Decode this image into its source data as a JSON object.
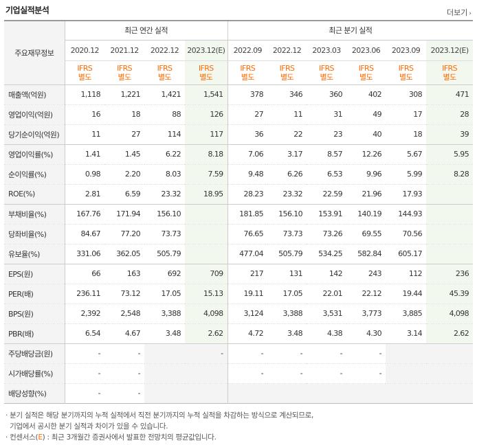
{
  "header": {
    "title": "기업실적분석",
    "more_label": "더보기"
  },
  "table": {
    "corner_label": "주요재무정보",
    "annual_label": "최근 연간 실적",
    "quarter_label": "최근 분기 실적",
    "periods": [
      "2020.12",
      "2021.12",
      "2022.12",
      "2023.12(E)",
      "2022.09",
      "2022.12",
      "2023.03",
      "2023.06",
      "2023.09",
      "2023.12(E)"
    ],
    "ifrs_line1": "IFRS",
    "ifrs_line2": "별도",
    "rows": [
      {
        "label": "매출액(억원)",
        "values": [
          "1,118",
          "1,221",
          "1,421",
          "1,541",
          "378",
          "346",
          "360",
          "402",
          "308",
          "471"
        ]
      },
      {
        "label": "영업이익(억원)",
        "values": [
          "16",
          "18",
          "88",
          "126",
          "27",
          "11",
          "31",
          "49",
          "17",
          "28"
        ]
      },
      {
        "label": "당기순이익(억원)",
        "values": [
          "11",
          "27",
          "114",
          "117",
          "36",
          "22",
          "23",
          "40",
          "18",
          "39"
        ]
      },
      {
        "label": "영업이익률(%)",
        "values": [
          "1.41",
          "1.45",
          "6.22",
          "8.18",
          "7.06",
          "3.17",
          "8.57",
          "12.26",
          "5.67",
          "5.95"
        ]
      },
      {
        "label": "순이익률(%)",
        "values": [
          "0.98",
          "2.20",
          "8.03",
          "7.59",
          "9.48",
          "6.26",
          "6.53",
          "9.96",
          "5.99",
          "8.28"
        ]
      },
      {
        "label": "ROE(%)",
        "values": [
          "2.81",
          "6.59",
          "23.32",
          "18.95",
          "28.23",
          "23.32",
          "22.59",
          "21.96",
          "17.93",
          ""
        ]
      },
      {
        "label": "부채비율(%)",
        "values": [
          "167.76",
          "171.94",
          "156.10",
          "",
          "181.85",
          "156.10",
          "153.91",
          "140.19",
          "144.93",
          ""
        ]
      },
      {
        "label": "당좌비율(%)",
        "values": [
          "84.67",
          "77.20",
          "73.73",
          "",
          "76.65",
          "73.73",
          "73.26",
          "69.55",
          "70.56",
          ""
        ]
      },
      {
        "label": "유보율(%)",
        "values": [
          "331.06",
          "362.05",
          "505.79",
          "",
          "477.04",
          "505.79",
          "534.25",
          "582.84",
          "605.17",
          ""
        ]
      },
      {
        "label": "EPS(원)",
        "values": [
          "66",
          "163",
          "692",
          "709",
          "217",
          "131",
          "142",
          "243",
          "112",
          "236"
        ]
      },
      {
        "label": "PER(배)",
        "values": [
          "236.11",
          "73.12",
          "17.05",
          "15.13",
          "19.11",
          "17.05",
          "22.01",
          "22.12",
          "19.44",
          "45.39"
        ]
      },
      {
        "label": "BPS(원)",
        "values": [
          "2,392",
          "2,548",
          "3,388",
          "4,098",
          "3,124",
          "3,388",
          "3,531",
          "3,773",
          "3,885",
          "4,098"
        ]
      },
      {
        "label": "PBR(배)",
        "values": [
          "6.54",
          "4.67",
          "3.48",
          "2.62",
          "4.72",
          "3.48",
          "4.38",
          "4.30",
          "3.14",
          "2.62"
        ]
      },
      {
        "label": "주당배당금(원)",
        "values": [
          "-",
          "-",
          "",
          "-",
          "-",
          "-",
          "-",
          "-",
          "",
          ""
        ]
      },
      {
        "label": "시가배당률(%)",
        "values": [
          "-",
          "-",
          "",
          "",
          "-",
          "-",
          "-",
          "-",
          "",
          ""
        ]
      },
      {
        "label": "배당성향(%)",
        "values": [
          "-",
          "-",
          "",
          "",
          "",
          "",
          "",
          "",
          "",
          ""
        ]
      }
    ]
  },
  "notes": {
    "line1": "· 분기 실적은 해당 분기까지의 누적 실적에서 직전 분기까지의 누적 실적을 차감하는 방식으로 계산되므로,",
    "line2": "  기업에서 공시한 분기 실적과 차이가 있을 수 있습니다.",
    "line3_pre": "· 컨센서스(",
    "line3_e": "E",
    "line3_post": ") : 최근 3개월간 증권사에서 발표한 전망치의 평균값입니다."
  }
}
